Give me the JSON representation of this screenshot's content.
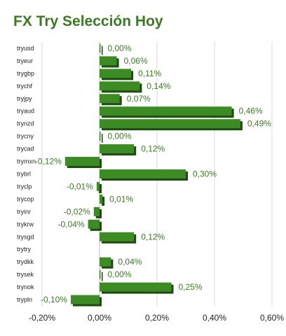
{
  "title": "FX Try Selección Hoy",
  "colors": {
    "bar_main": "#3d8b25",
    "bar_shadow": "#1f4a12",
    "title": "#3b7a22",
    "value_label": "#3b7a22",
    "grid": "#d8d8d8"
  },
  "chart_data": {
    "type": "bar",
    "orientation": "horizontal",
    "title": "FX Try Selección Hoy",
    "xlabel": "",
    "ylabel": "",
    "xlim": [
      -0.2,
      0.6
    ],
    "x_ticks": [
      -0.2,
      0.0,
      0.2,
      0.4,
      0.6
    ],
    "x_tick_labels": [
      "-0,20%",
      "0,00%",
      "0,20%",
      "0,40%",
      "0,60%"
    ],
    "grid": true,
    "categories": [
      "tryusd",
      "tryeur",
      "trygbp",
      "trychf",
      "tryjpy",
      "tryaud",
      "trynzd",
      "trycny",
      "trycad",
      "trymxn",
      "trybrl",
      "tryclp",
      "trycop",
      "tryinr",
      "trykrw",
      "trysgd",
      "trytry",
      "trydkk",
      "trysek",
      "trynok",
      "trypln"
    ],
    "values": [
      0.0,
      0.06,
      0.11,
      0.14,
      0.07,
      0.46,
      0.49,
      0.0,
      0.12,
      -0.12,
      0.3,
      -0.01,
      0.01,
      -0.02,
      -0.04,
      0.12,
      null,
      0.04,
      0.0,
      0.25,
      -0.1
    ],
    "value_labels": [
      "0,00%",
      "0,06%",
      "0,11%",
      "0,14%",
      "0,07%",
      "0,46%",
      "0,49%",
      "0,00%",
      "0,12%",
      "-0,12%",
      "0,30%",
      "-0,01%",
      "0,01%",
      "-0,02%",
      "-0,04%",
      "0,12%",
      "",
      "0,04%",
      "0,00%",
      "0,25%",
      "-0,10%"
    ]
  }
}
